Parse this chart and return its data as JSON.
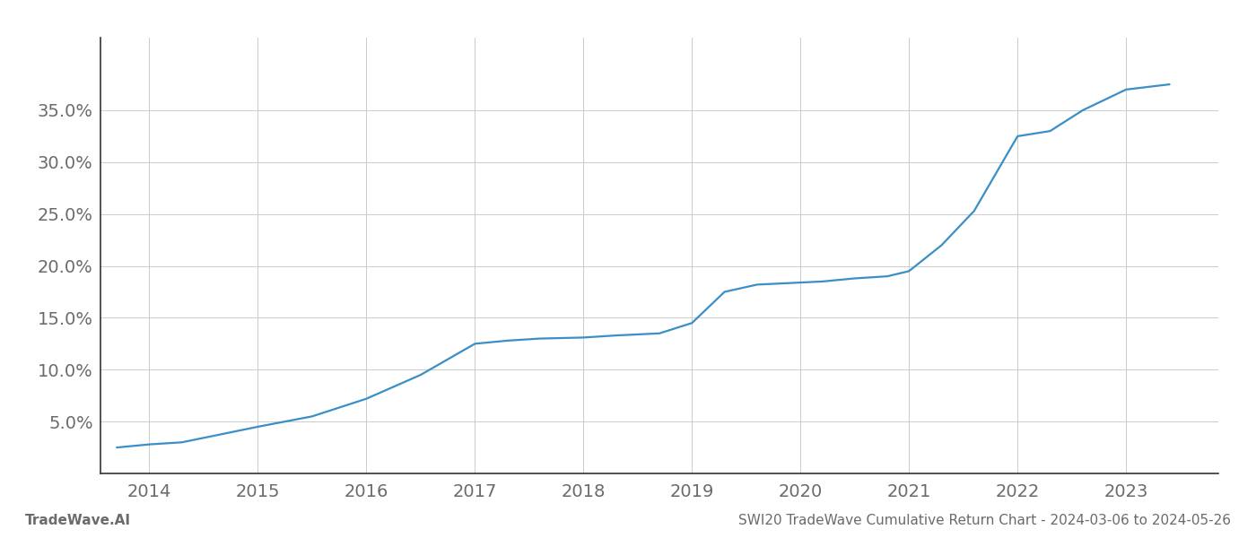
{
  "footer_left": "TradeWave.AI",
  "footer_right": "SWI20 TradeWave Cumulative Return Chart - 2024-03-06 to 2024-05-26",
  "line_color": "#3a8fc7",
  "background_color": "#ffffff",
  "grid_color": "#cccccc",
  "text_color": "#6b6b6b",
  "spine_color": "#333333",
  "x_years": [
    2013.7,
    2014.0,
    2014.3,
    2015.0,
    2015.5,
    2016.0,
    2016.5,
    2017.0,
    2017.3,
    2017.6,
    2018.0,
    2018.3,
    2018.7,
    2019.0,
    2019.3,
    2019.6,
    2020.0,
    2020.2,
    2020.5,
    2020.8,
    2021.0,
    2021.3,
    2021.6,
    2022.0,
    2022.3,
    2022.6,
    2023.0,
    2023.4
  ],
  "y_values": [
    2.5,
    2.8,
    3.0,
    4.5,
    5.5,
    7.2,
    9.5,
    12.5,
    12.8,
    13.0,
    13.1,
    13.3,
    13.5,
    14.5,
    17.5,
    18.2,
    18.4,
    18.5,
    18.8,
    19.0,
    19.5,
    22.0,
    25.3,
    32.5,
    33.0,
    35.0,
    37.0,
    37.5
  ],
  "xlim": [
    2013.55,
    2023.85
  ],
  "ylim": [
    0,
    42
  ],
  "yticks": [
    5.0,
    10.0,
    15.0,
    20.0,
    25.0,
    30.0,
    35.0
  ],
  "xticks": [
    2014,
    2015,
    2016,
    2017,
    2018,
    2019,
    2020,
    2021,
    2022,
    2023
  ],
  "tick_fontsize": 14,
  "footer_fontsize": 11
}
